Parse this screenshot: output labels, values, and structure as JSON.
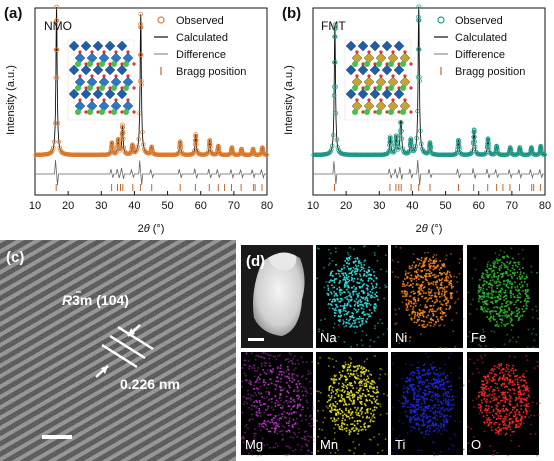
{
  "panels": {
    "a_label": "(a)",
    "b_label": "(b)",
    "c_label": "(c)",
    "d_label": "(d)"
  },
  "xrd_axes": {
    "ylabel": "Intensity (a.u.)",
    "xlabel_prefix": "2",
    "xlabel_theta": "θ",
    "xlabel_suffix": " (°)",
    "xticks": [
      "10",
      "20",
      "30",
      "40",
      "50",
      "60",
      "70",
      "80"
    ]
  },
  "legend": {
    "observed": "Observed",
    "calculated": "Calculated",
    "difference": "Difference",
    "bragg": "Bragg position"
  },
  "colors": {
    "nmo_observed": "#e07a2a",
    "fmt_observed": "#1a9a86",
    "bragg": "#c0662a",
    "calculated": "#111111",
    "difference": "#666666",
    "na": "#35e6e6",
    "ni": "#ff8a1e",
    "fe": "#2fbf2f",
    "mg": "#c23ad0",
    "mn": "#e8e62a",
    "ti": "#1e28e0",
    "o": "#ff2a2a"
  },
  "chart_data": [
    {
      "type": "line",
      "sample": "NMO",
      "xlim": [
        10,
        80
      ],
      "xlabel": "2θ (°)",
      "ylabel": "Intensity (a.u.)",
      "legend": "top-right",
      "peaks": [
        {
          "x": 16.5,
          "y": 1.0
        },
        {
          "x": 33.2,
          "y": 0.08
        },
        {
          "x": 35.1,
          "y": 0.1
        },
        {
          "x": 36.4,
          "y": 0.2
        },
        {
          "x": 39.4,
          "y": 0.06
        },
        {
          "x": 41.9,
          "y": 0.95
        },
        {
          "x": 45.2,
          "y": 0.05
        },
        {
          "x": 53.8,
          "y": 0.09
        },
        {
          "x": 58.5,
          "y": 0.14
        },
        {
          "x": 62.7,
          "y": 0.1
        },
        {
          "x": 65.3,
          "y": 0.06
        },
        {
          "x": 69.4,
          "y": 0.05
        },
        {
          "x": 72.3,
          "y": 0.04
        },
        {
          "x": 75.8,
          "y": 0.04
        },
        {
          "x": 78.6,
          "y": 0.05
        }
      ],
      "bragg_positions": [
        16.4,
        33.1,
        34.9,
        35.8,
        36.5,
        39.5,
        41.8,
        45.2,
        53.8,
        58.4,
        62.6,
        65.3,
        67.2,
        69.3,
        72.2,
        75.9,
        76.4,
        78.5
      ]
    },
    {
      "type": "line",
      "sample": "FMT",
      "xlim": [
        10,
        80
      ],
      "xlabel": "2θ (°)",
      "ylabel": "Intensity (a.u.)",
      "legend": "top-right",
      "peaks": [
        {
          "x": 16.6,
          "y": 0.88
        },
        {
          "x": 33.3,
          "y": 0.12
        },
        {
          "x": 35.1,
          "y": 0.12
        },
        {
          "x": 36.5,
          "y": 0.3
        },
        {
          "x": 39.5,
          "y": 0.1
        },
        {
          "x": 41.9,
          "y": 1.0
        },
        {
          "x": 45.3,
          "y": 0.08
        },
        {
          "x": 53.9,
          "y": 0.1
        },
        {
          "x": 58.6,
          "y": 0.17
        },
        {
          "x": 62.8,
          "y": 0.11
        },
        {
          "x": 65.4,
          "y": 0.06
        },
        {
          "x": 69.5,
          "y": 0.05
        },
        {
          "x": 72.4,
          "y": 0.05
        },
        {
          "x": 75.9,
          "y": 0.05
        },
        {
          "x": 78.7,
          "y": 0.06
        }
      ],
      "bragg_positions": [
        16.5,
        33.2,
        35.0,
        35.9,
        36.6,
        39.6,
        41.9,
        45.3,
        53.9,
        58.5,
        62.7,
        65.4,
        67.3,
        69.4,
        72.3,
        76.0,
        76.6,
        78.6
      ]
    }
  ],
  "tem": {
    "plane_r": "R",
    "plane_3": "3",
    "plane_rest": "m (104)",
    "d_spacing": "0.226 nm"
  },
  "eds": {
    "labels": [
      "Na",
      "Ni",
      "Fe",
      "Mg",
      "Mn",
      "Ti",
      "O"
    ]
  }
}
